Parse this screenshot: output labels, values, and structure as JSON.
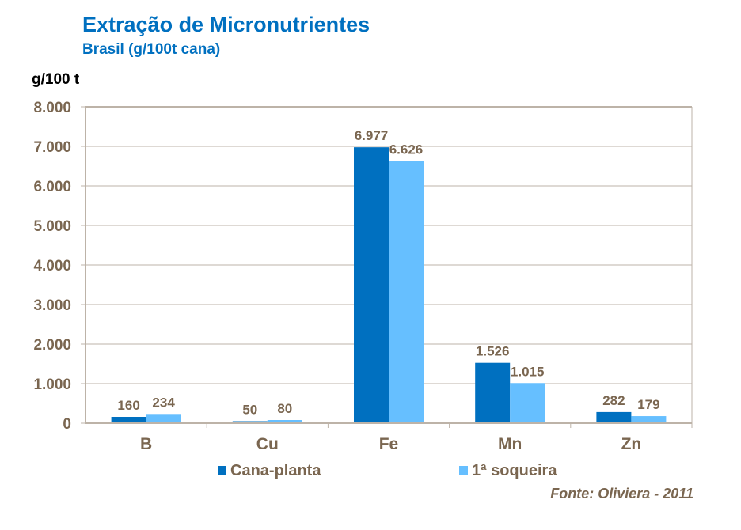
{
  "title": "Extração de Micronutrientes",
  "subtitle": "Brasil (g/100t cana)",
  "unit_label": "g/100 t",
  "source": "Fonte: Oliviera - 2011",
  "colors": {
    "cana_planta": "#0070C0",
    "soqueira": "#66BFFF",
    "text": "#7a6650",
    "grid": "#bdb3a8"
  },
  "chart_data": {
    "type": "bar",
    "title": "Extração de Micronutrientes",
    "ylabel": "g/100 t",
    "ylim": [
      0,
      8000
    ],
    "yticks": [
      0,
      1000,
      2000,
      3000,
      4000,
      5000,
      6000,
      7000,
      8000
    ],
    "ytick_labels": [
      "0",
      "1.000",
      "2.000",
      "3.000",
      "4.000",
      "5.000",
      "6.000",
      "7.000",
      "8.000"
    ],
    "categories": [
      "B",
      "Cu",
      "Fe",
      "Mn",
      "Zn"
    ],
    "series": [
      {
        "name": "Cana-planta",
        "values": [
          160,
          50,
          6977,
          1526,
          282
        ],
        "labels": [
          "160",
          "50",
          "6.977",
          "1.526",
          "282"
        ]
      },
      {
        "name": "1ª soqueira",
        "values": [
          234,
          80,
          6626,
          1015,
          179
        ],
        "labels": [
          "234",
          "80",
          "6.626",
          "1.015",
          "179"
        ]
      }
    ],
    "legend": "bottom",
    "grid": true
  }
}
